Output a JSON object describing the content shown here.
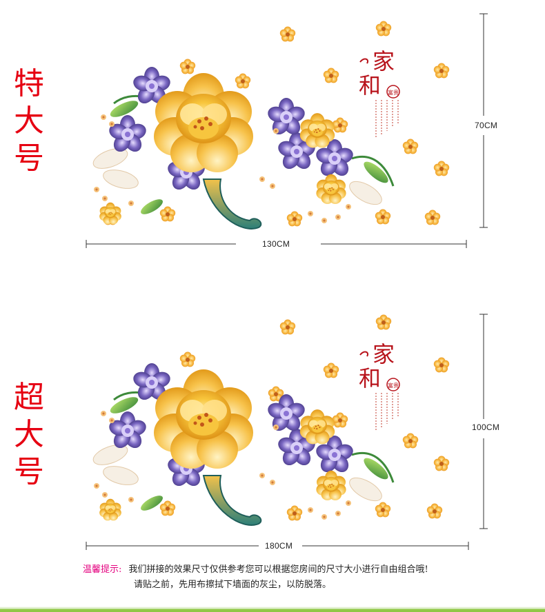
{
  "panels": [
    {
      "size_name": "特大号",
      "width_label": "130CM",
      "height_label": "70CM"
    },
    {
      "size_name": "超大号",
      "width_label": "180CM",
      "height_label": "100CM"
    }
  ],
  "artwork_text": {
    "title_char_1": "家",
    "title_char_2": "和",
    "seal_text": "富贵"
  },
  "tip": {
    "label": "温馨提示:",
    "line1": "我们拼接的效果尺寸仅供参考您可以根据您房间的尺寸大小进行自由组合哦!",
    "line2": "请贴之前，先用布擦拭下墙面的灰尘，以防脱落。"
  },
  "colors": {
    "size_label": "#e60012",
    "tip_label": "#e4007f",
    "peony_gold": "#f5b52a",
    "peony_purple": "#5b4a9c",
    "accent_green": "#8cc63f"
  }
}
